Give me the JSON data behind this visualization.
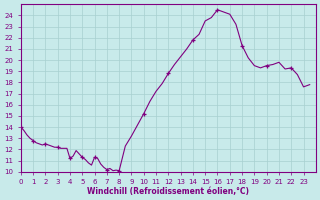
{
  "xlabel": "Windchill (Refroidissement éolien,°C)",
  "xlim": [
    0,
    24
  ],
  "ylim": [
    10,
    25
  ],
  "yticks": [
    10,
    11,
    12,
    13,
    14,
    15,
    16,
    17,
    18,
    19,
    20,
    21,
    22,
    23,
    24
  ],
  "xticks": [
    0,
    1,
    2,
    3,
    4,
    5,
    6,
    7,
    8,
    9,
    10,
    11,
    12,
    13,
    14,
    15,
    16,
    17,
    18,
    19,
    20,
    21,
    22,
    23
  ],
  "line_color": "#800080",
  "bg_color": "#c8eaea",
  "grid_color": "#a8d0d0",
  "x": [
    0,
    0.25,
    0.5,
    0.75,
    1.0,
    1.25,
    1.5,
    1.75,
    2.0,
    2.25,
    2.5,
    2.75,
    3.0,
    3.25,
    3.5,
    3.75,
    4.0,
    4.25,
    4.5,
    4.75,
    5.0,
    5.25,
    5.5,
    5.75,
    6.0,
    6.25,
    6.5,
    6.75,
    7.0,
    7.25,
    7.5,
    7.75,
    8.0,
    8.5,
    9.0,
    9.5,
    10.0,
    10.5,
    11.0,
    11.5,
    12.0,
    12.5,
    13.0,
    13.5,
    14.0,
    14.5,
    15.0,
    15.5,
    16.0,
    16.5,
    17.0,
    17.5,
    18.0,
    18.5,
    19.0,
    19.5,
    20.0,
    20.5,
    21.0,
    21.5,
    22.0,
    22.5,
    23.0,
    23.5
  ],
  "y": [
    14.0,
    13.7,
    13.3,
    13.0,
    12.8,
    12.6,
    12.5,
    12.4,
    12.5,
    12.4,
    12.3,
    12.2,
    12.2,
    12.1,
    12.1,
    12.1,
    11.2,
    11.4,
    11.9,
    11.6,
    11.3,
    11.1,
    10.8,
    10.6,
    11.3,
    11.2,
    10.7,
    10.4,
    10.2,
    10.3,
    10.1,
    10.15,
    10.1,
    12.3,
    13.2,
    14.2,
    15.2,
    16.3,
    17.2,
    17.9,
    18.8,
    19.6,
    20.3,
    21.0,
    21.8,
    22.3,
    23.5,
    23.8,
    24.5,
    24.3,
    24.1,
    23.2,
    21.3,
    20.2,
    19.5,
    19.3,
    19.5,
    19.6,
    19.8,
    19.2,
    19.3,
    18.7,
    17.6,
    17.8
  ]
}
